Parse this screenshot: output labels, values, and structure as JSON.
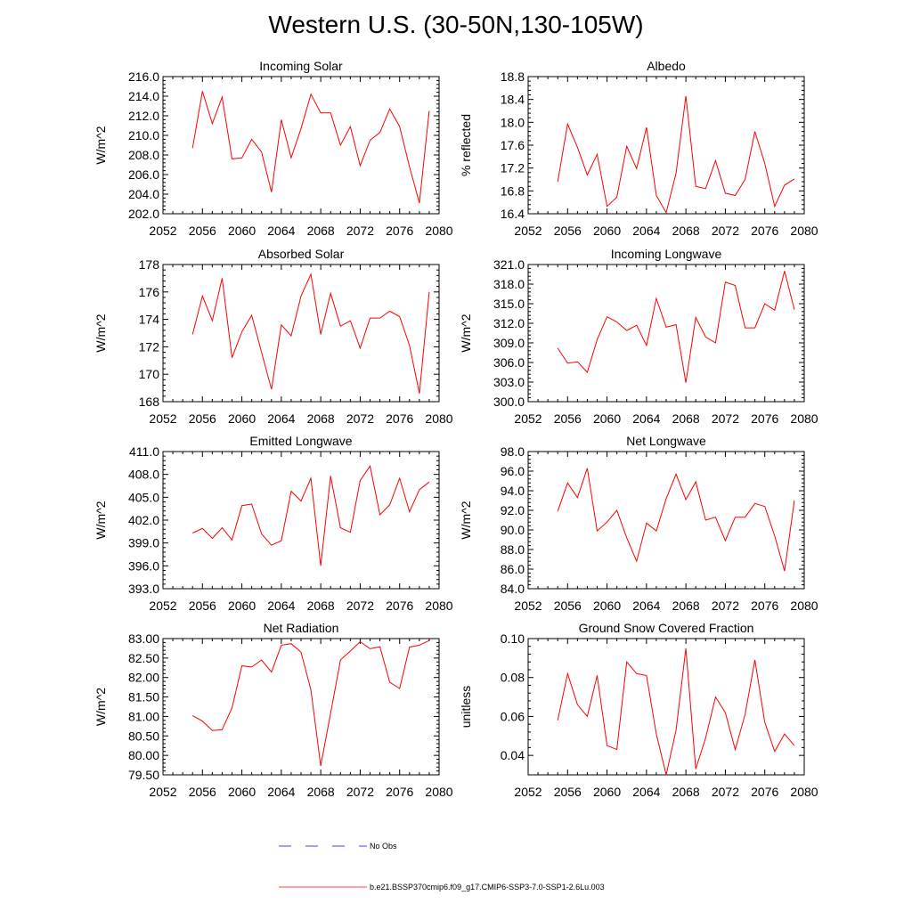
{
  "title": "Western U.S. (30-50N,130-105W)",
  "colors": {
    "model": "#ff0000",
    "obs": "#0000ff",
    "axis": "#000000"
  },
  "legend": {
    "items": [
      {
        "label": "No Obs",
        "style": "dashed",
        "color": "#0000ff"
      },
      {
        "label": "b.e21.BSSP370cmip6.f09_g17.CMIP6-SSP3-7.0-SSP1-2.6Lu.003",
        "style": "solid",
        "color": "#ff0000"
      }
    ]
  },
  "chart_data": [
    {
      "type": "line",
      "title": "Incoming Solar",
      "ylabel": "W/m^2",
      "xlim": [
        2052,
        2080
      ],
      "ylim": [
        202.0,
        216.0
      ],
      "xticks": [
        2052,
        2056,
        2060,
        2064,
        2068,
        2072,
        2076,
        2080
      ],
      "yticks": [
        "202.0",
        "204.0",
        "206.0",
        "208.0",
        "210.0",
        "212.0",
        "214.0",
        "216.0"
      ],
      "x": [
        2055,
        2056,
        2057,
        2058,
        2059,
        2060,
        2061,
        2062,
        2063,
        2064,
        2065,
        2066,
        2067,
        2068,
        2069,
        2070,
        2071,
        2072,
        2073,
        2074,
        2075,
        2076,
        2077,
        2078,
        2079
      ],
      "values": [
        208.7,
        214.5,
        211.2,
        213.9,
        207.6,
        207.7,
        209.6,
        208.3,
        204.2,
        211.6,
        207.7,
        210.7,
        214.2,
        212.3,
        212.3,
        209.0,
        210.9,
        206.9,
        209.5,
        210.3,
        212.7,
        210.9,
        206.8,
        203.1,
        212.5
      ]
    },
    {
      "type": "line",
      "title": "Albedo",
      "ylabel": "% reflected",
      "xlim": [
        2052,
        2080
      ],
      "ylim": [
        16.4,
        18.8
      ],
      "xticks": [
        2052,
        2056,
        2060,
        2064,
        2068,
        2072,
        2076,
        2080
      ],
      "yticks": [
        "16.4",
        "16.8",
        "17.2",
        "17.6",
        "18.0",
        "18.4",
        "18.8"
      ],
      "x": [
        2055,
        2056,
        2057,
        2058,
        2059,
        2060,
        2061,
        2062,
        2063,
        2064,
        2065,
        2066,
        2067,
        2068,
        2069,
        2070,
        2071,
        2072,
        2073,
        2074,
        2075,
        2076,
        2077,
        2078,
        2079
      ],
      "values": [
        16.96,
        17.97,
        17.56,
        17.08,
        17.44,
        16.53,
        16.69,
        17.58,
        17.19,
        17.91,
        16.72,
        16.42,
        17.11,
        18.46,
        16.88,
        16.84,
        17.33,
        16.76,
        16.72,
        17.0,
        17.84,
        17.28,
        16.53,
        16.9,
        17.01
      ]
    },
    {
      "type": "line",
      "title": "Absorbed Solar",
      "ylabel": "W/m^2",
      "xlim": [
        2052,
        2080
      ],
      "ylim": [
        168,
        178
      ],
      "xticks": [
        2052,
        2056,
        2060,
        2064,
        2068,
        2072,
        2076,
        2080
      ],
      "yticks": [
        "168",
        "170",
        "172",
        "174",
        "176",
        "178"
      ],
      "x": [
        2055,
        2056,
        2057,
        2058,
        2059,
        2060,
        2061,
        2062,
        2063,
        2064,
        2065,
        2066,
        2067,
        2068,
        2069,
        2070,
        2071,
        2072,
        2073,
        2074,
        2075,
        2076,
        2077,
        2078,
        2079
      ],
      "values": [
        172.9,
        175.7,
        173.9,
        177.0,
        171.2,
        173.1,
        174.3,
        171.6,
        168.9,
        173.6,
        172.8,
        175.7,
        177.3,
        172.9,
        175.9,
        173.5,
        173.9,
        171.9,
        174.1,
        174.1,
        174.6,
        174.2,
        172.1,
        168.6,
        176.0
      ]
    },
    {
      "type": "line",
      "title": "Incoming Longwave",
      "ylabel": "W/m^2",
      "xlim": [
        2052,
        2080
      ],
      "ylim": [
        300.0,
        321.0
      ],
      "xticks": [
        2052,
        2056,
        2060,
        2064,
        2068,
        2072,
        2076,
        2080
      ],
      "yticks": [
        "300.0",
        "303.0",
        "306.0",
        "309.0",
        "312.0",
        "315.0",
        "318.0",
        "321.0"
      ],
      "x": [
        2055,
        2056,
        2057,
        2058,
        2059,
        2060,
        2061,
        2062,
        2063,
        2064,
        2065,
        2066,
        2067,
        2068,
        2069,
        2070,
        2071,
        2072,
        2073,
        2074,
        2075,
        2076,
        2077,
        2078,
        2079
      ],
      "values": [
        308.2,
        305.9,
        306.1,
        304.5,
        309.5,
        313.0,
        312.2,
        310.9,
        311.7,
        308.6,
        315.8,
        311.4,
        311.8,
        302.9,
        312.9,
        309.9,
        309.0,
        318.3,
        317.8,
        311.3,
        311.3,
        315.0,
        314.0,
        320.0,
        314.1
      ]
    },
    {
      "type": "line",
      "title": "Emitted Longwave",
      "ylabel": "W/m^2",
      "xlim": [
        2052,
        2080
      ],
      "ylim": [
        393.0,
        411.0
      ],
      "xticks": [
        2052,
        2056,
        2060,
        2064,
        2068,
        2072,
        2076,
        2080
      ],
      "yticks": [
        "393.0",
        "396.0",
        "399.0",
        "402.0",
        "405.0",
        "408.0",
        "411.0"
      ],
      "x": [
        2055,
        2056,
        2057,
        2058,
        2059,
        2060,
        2061,
        2062,
        2063,
        2064,
        2065,
        2066,
        2067,
        2068,
        2069,
        2070,
        2071,
        2072,
        2073,
        2074,
        2075,
        2076,
        2077,
        2078,
        2079
      ],
      "values": [
        400.3,
        400.9,
        399.6,
        401.0,
        399.4,
        403.9,
        404.1,
        400.2,
        398.7,
        399.3,
        405.8,
        404.5,
        407.5,
        396.0,
        407.8,
        401.0,
        400.4,
        407.2,
        409.1,
        402.7,
        404.0,
        407.5,
        403.1,
        406.0,
        407.0
      ]
    },
    {
      "type": "line",
      "title": "Net Longwave",
      "ylabel": "W/m^2",
      "xlim": [
        2052,
        2080
      ],
      "ylim": [
        84.0,
        98.0
      ],
      "xticks": [
        2052,
        2056,
        2060,
        2064,
        2068,
        2072,
        2076,
        2080
      ],
      "yticks": [
        "84.0",
        "86.0",
        "88.0",
        "90.0",
        "92.0",
        "94.0",
        "96.0",
        "98.0"
      ],
      "x": [
        2055,
        2056,
        2057,
        2058,
        2059,
        2060,
        2061,
        2062,
        2063,
        2064,
        2065,
        2066,
        2067,
        2068,
        2069,
        2070,
        2071,
        2072,
        2073,
        2074,
        2075,
        2076,
        2077,
        2078,
        2079
      ],
      "values": [
        91.9,
        94.8,
        93.3,
        96.3,
        89.9,
        90.8,
        92.0,
        89.2,
        86.8,
        90.7,
        89.9,
        93.2,
        95.7,
        93.1,
        94.9,
        91.0,
        91.3,
        88.9,
        91.3,
        91.3,
        92.7,
        92.4,
        89.4,
        85.8,
        93.0
      ]
    },
    {
      "type": "line",
      "title": "Net Radiation",
      "ylabel": "W/m^2",
      "xlim": [
        2052,
        2080
      ],
      "ylim": [
        79.5,
        83.0
      ],
      "xticks": [
        2052,
        2056,
        2060,
        2064,
        2068,
        2072,
        2076,
        2080
      ],
      "yticks": [
        "79.50",
        "80.00",
        "80.50",
        "81.00",
        "81.50",
        "82.00",
        "82.50",
        "83.00"
      ],
      "x": [
        2055,
        2056,
        2057,
        2058,
        2059,
        2060,
        2061,
        2062,
        2063,
        2064,
        2065,
        2066,
        2067,
        2068,
        2069,
        2070,
        2071,
        2072,
        2073,
        2074,
        2075,
        2076,
        2077,
        2078,
        2079
      ],
      "values": [
        81.02,
        80.88,
        80.64,
        80.66,
        81.22,
        82.3,
        82.27,
        82.45,
        82.14,
        82.83,
        82.87,
        82.65,
        81.68,
        79.73,
        81.08,
        82.45,
        82.68,
        82.92,
        82.74,
        82.79,
        81.88,
        81.72,
        82.78,
        82.83,
        82.95
      ]
    },
    {
      "type": "line",
      "title": "Ground Snow Covered Fraction",
      "ylabel": "unitless",
      "xlim": [
        2052,
        2080
      ],
      "ylim": [
        0.03,
        0.1
      ],
      "xticks": [
        2052,
        2056,
        2060,
        2064,
        2068,
        2072,
        2076,
        2080
      ],
      "yticks": [
        "0.04",
        "0.06",
        "0.08",
        "0.10"
      ],
      "ytick_values": [
        0.04,
        0.06,
        0.08,
        0.1
      ],
      "x": [
        2055,
        2056,
        2057,
        2058,
        2059,
        2060,
        2061,
        2062,
        2063,
        2064,
        2065,
        2066,
        2067,
        2068,
        2069,
        2070,
        2071,
        2072,
        2073,
        2074,
        2075,
        2076,
        2077,
        2078,
        2079
      ],
      "values": [
        0.058,
        0.082,
        0.066,
        0.06,
        0.081,
        0.045,
        0.043,
        0.088,
        0.082,
        0.081,
        0.051,
        0.03,
        0.053,
        0.095,
        0.033,
        0.049,
        0.07,
        0.062,
        0.043,
        0.061,
        0.089,
        0.057,
        0.042,
        0.051,
        0.045
      ]
    }
  ]
}
